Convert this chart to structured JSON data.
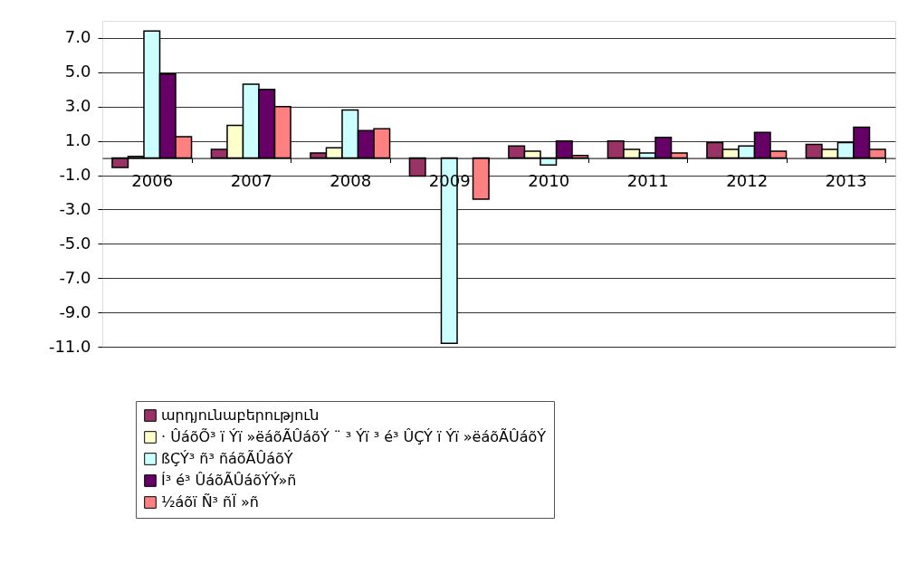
{
  "chart_data": {
    "type": "bar",
    "categories": [
      "2006",
      "2007",
      "2008",
      "2009",
      "2010",
      "2011",
      "2012",
      "2013"
    ],
    "series": [
      {
        "name": "արդյունաբերություն",
        "color": "#993366",
        "values": [
          -0.55,
          0.5,
          0.3,
          -1.05,
          0.7,
          1.0,
          0.9,
          0.8
        ]
      },
      {
        "name": "· ÛáõÕ³ ï Ýï »ëáõÃÛáõÝ ¨ ³ Ýï ³ é³ ÛÇÝ ï Ýï »ëáõÃÛáõÝ",
        "color": "#ffffcc",
        "values": [
          0.1,
          1.9,
          0.6,
          null,
          0.4,
          0.5,
          0.5,
          0.5
        ]
      },
      {
        "name": "ßÇÝ³ ñ³ ñáõÃÛáõÝ",
        "color": "#ccffff",
        "values": [
          7.4,
          4.3,
          2.8,
          -10.8,
          -0.4,
          0.3,
          0.7,
          0.9
        ]
      },
      {
        "name": "Í³ é³ ÛáõÃÛáõÝÝ»ñ",
        "color": "#660066",
        "values": [
          4.9,
          4.0,
          1.6,
          null,
          1.0,
          1.2,
          1.5,
          1.8
        ]
      },
      {
        "name": "½áõï Ñ³ ñÏ »ñ",
        "color": "#ff8080",
        "values": [
          1.25,
          3.0,
          1.7,
          -2.4,
          0.15,
          0.3,
          0.4,
          0.5
        ]
      }
    ],
    "ylim": [
      -11.0,
      8.0
    ],
    "yticks": [
      {
        "value": -11,
        "label": "-11.0"
      },
      {
        "value": -9,
        "label": "-9.0"
      },
      {
        "value": -7,
        "label": "-7.0"
      },
      {
        "value": -5,
        "label": "-5.0"
      },
      {
        "value": -3,
        "label": "-3.0"
      },
      {
        "value": -1,
        "label": "-1.0"
      },
      {
        "value": 1,
        "label": "1.0"
      },
      {
        "value": 3,
        "label": "3.0"
      },
      {
        "value": 5,
        "label": "5.0"
      },
      {
        "value": 7,
        "label": "7.0"
      }
    ],
    "grid": "y",
    "legend": "bottom"
  }
}
